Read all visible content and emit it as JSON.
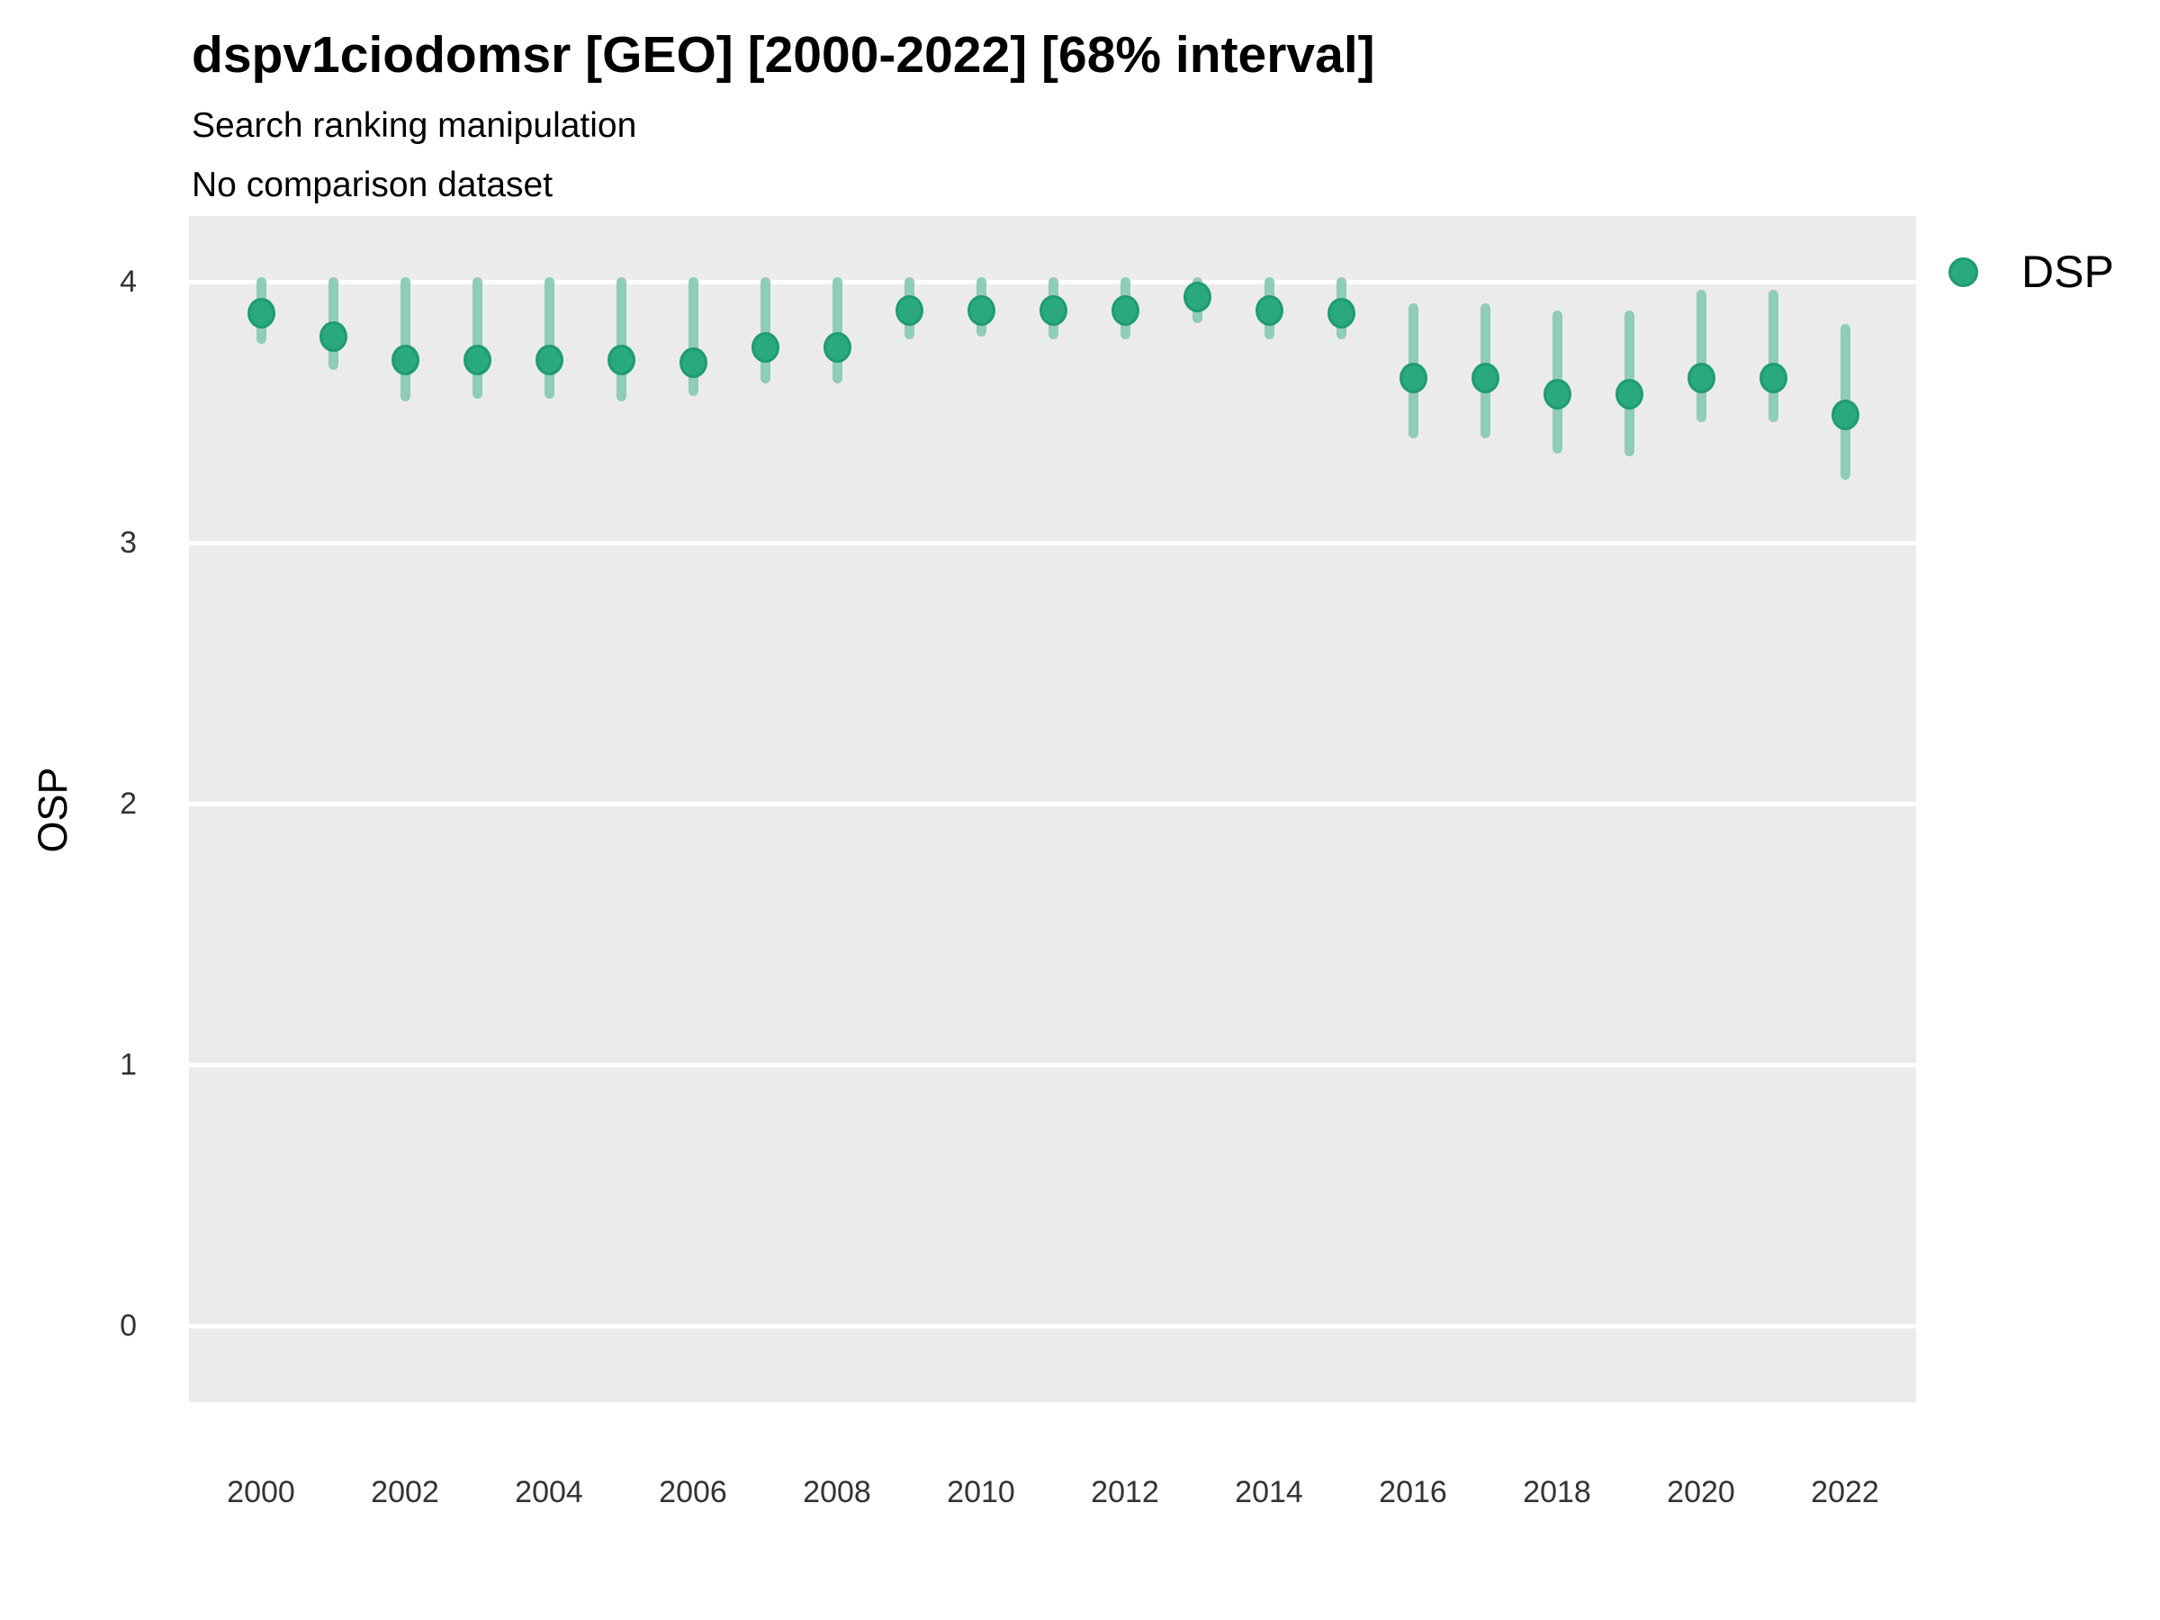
{
  "header": {
    "title": "dspv1ciodomsr [GEO] [2000-2022] [68% interval]",
    "subtitle1": "Search ranking manipulation",
    "subtitle2": "No comparison dataset"
  },
  "legend": {
    "label": "DSP"
  },
  "y_axis": {
    "label": "OSP",
    "ticks": [
      4,
      3,
      2,
      1,
      0
    ]
  },
  "x_axis": {
    "ticks": [
      2000,
      2002,
      2004,
      2006,
      2008,
      2010,
      2012,
      2014,
      2016,
      2018,
      2020,
      2022
    ]
  },
  "colors": {
    "panel_background": "#EBEBEB",
    "gridline": "#FFFFFF",
    "point_fill": "#2AA87E",
    "point_border": "#1E9C6F",
    "interval_bar": "#8FCDB6"
  },
  "chart_data": {
    "type": "scatter",
    "title": "dspv1ciodomsr [GEO] [2000-2022] [68% interval]",
    "subtitle": [
      "Search ranking manipulation",
      "No comparison dataset"
    ],
    "xlabel": "",
    "ylabel": "OSP",
    "interval": "68%",
    "ylim": [
      -0.3,
      4.25
    ],
    "x_tick_labels": [
      2000,
      2002,
      2004,
      2006,
      2008,
      2010,
      2012,
      2014,
      2016,
      2018,
      2020,
      2022
    ],
    "y_tick_labels": [
      0,
      1,
      2,
      3,
      4
    ],
    "grid": "major-horizontal",
    "legend_position": "right-top",
    "x": [
      2000,
      2001,
      2002,
      2003,
      2004,
      2005,
      2006,
      2007,
      2008,
      2009,
      2010,
      2011,
      2012,
      2013,
      2014,
      2015,
      2016,
      2017,
      2018,
      2019,
      2020,
      2021,
      2022
    ],
    "series": [
      {
        "name": "DSP",
        "means": [
          3.88,
          3.79,
          3.7,
          3.7,
          3.7,
          3.7,
          3.69,
          3.75,
          3.75,
          3.89,
          3.89,
          3.89,
          3.89,
          3.94,
          3.89,
          3.88,
          3.63,
          3.63,
          3.57,
          3.57,
          3.63,
          3.63,
          3.49
        ],
        "lower": [
          3.78,
          3.68,
          3.56,
          3.57,
          3.57,
          3.56,
          3.58,
          3.63,
          3.63,
          3.8,
          3.81,
          3.8,
          3.8,
          3.86,
          3.8,
          3.8,
          3.42,
          3.42,
          3.36,
          3.35,
          3.48,
          3.48,
          3.26
        ],
        "upper": [
          4.0,
          4.0,
          4.0,
          4.0,
          4.0,
          4.0,
          4.0,
          4.0,
          4.0,
          4.0,
          4.0,
          4.0,
          4.0,
          4.0,
          4.0,
          4.0,
          3.9,
          3.9,
          3.87,
          3.87,
          3.95,
          3.95,
          3.82
        ]
      }
    ]
  }
}
